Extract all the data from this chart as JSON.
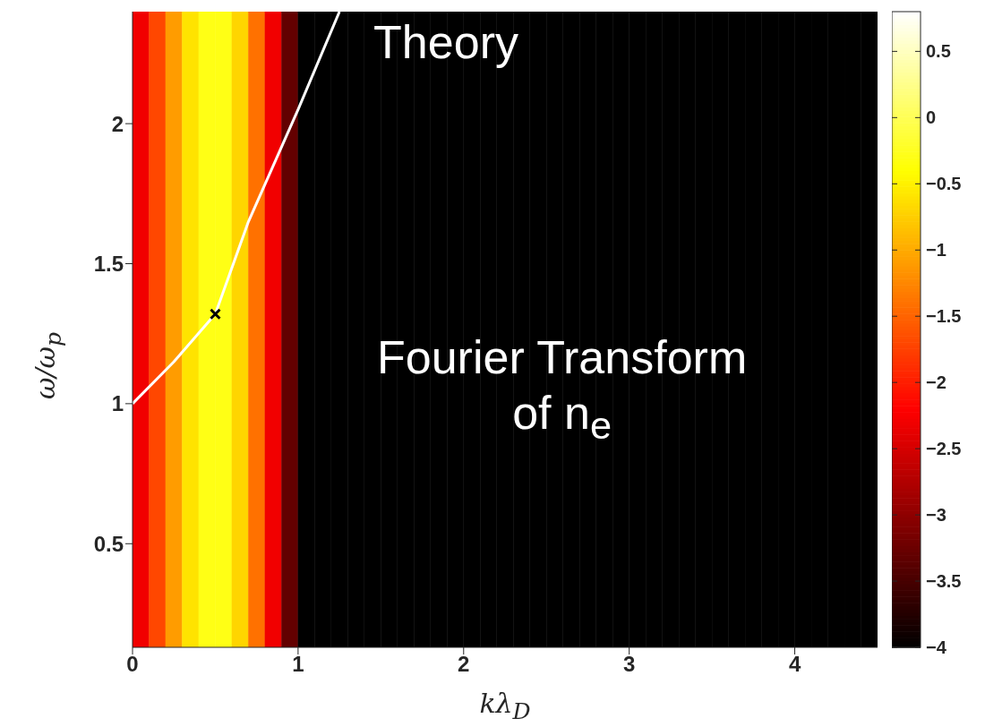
{
  "chart_data": {
    "type": "heatmap",
    "x": [
      0.05,
      0.15,
      0.25,
      0.35,
      0.45,
      0.55,
      0.65,
      0.75,
      0.85,
      0.95,
      1.05,
      1.15,
      1.25,
      1.35,
      1.45,
      1.55,
      1.65,
      1.75,
      1.85,
      1.95,
      2.05,
      2.15,
      2.25,
      2.35,
      2.45,
      2.55,
      2.65,
      2.75,
      2.85,
      2.95,
      3.05,
      3.15,
      3.25,
      3.35,
      3.45,
      3.55,
      3.65,
      3.75,
      3.85,
      3.95,
      4.05,
      4.15,
      4.25,
      4.35,
      4.45
    ],
    "cells": [
      [
        -2.3,
        -1.7,
        -1.1,
        -0.6,
        -0.3,
        -0.3,
        -0.7,
        -1.4,
        -2.3,
        -3.3,
        -4,
        -4,
        -4,
        -4,
        -4,
        -4,
        -4,
        -4,
        -4,
        -4,
        -4,
        -4,
        -4,
        -4,
        -4,
        -4,
        -4,
        -4,
        -4,
        -4,
        -4,
        -4,
        -4,
        -4,
        -4,
        -4,
        -4,
        -4,
        -4,
        -4,
        -4,
        -4,
        -4,
        -4,
        -4
      ]
    ],
    "clim": [
      -4,
      0.8
    ],
    "cticks": [
      {
        "value": -4,
        "label": "−4"
      },
      {
        "value": -3.5,
        "label": "−3.5"
      },
      {
        "value": -3,
        "label": "−3"
      },
      {
        "value": -2.5,
        "label": "−2.5"
      },
      {
        "value": -2,
        "label": "−2"
      },
      {
        "value": -1.5,
        "label": "−1.5"
      },
      {
        "value": -1,
        "label": "−1"
      },
      {
        "value": -0.5,
        "label": "−0.5"
      },
      0,
      0.5
    ],
    "series": [
      {
        "type": "line",
        "name": "Theory",
        "color": "#ffffff",
        "marker": "none",
        "x": [
          0,
          0.25,
          0.5,
          0.7,
          1.0,
          1.25
        ],
        "values": [
          1.0,
          1.15,
          1.32,
          1.65,
          2.05,
          2.4
        ]
      },
      {
        "type": "scatter",
        "color": "#000000",
        "marker": "cross",
        "x": [
          0.5
        ],
        "values": [
          1.32
        ]
      }
    ],
    "xlim": [
      0,
      4.5
    ],
    "xticks": [
      0,
      1,
      2,
      3,
      4
    ],
    "ylim": [
      0.13,
      2.4
    ],
    "yticks": [
      0.5,
      1,
      1.5,
      2
    ],
    "xlabel": "kλ$_{D}$",
    "ylabel": "ω/ω$_{p}$",
    "annotations": [
      "Fourier Transform of n$_{e}$"
    ]
  }
}
